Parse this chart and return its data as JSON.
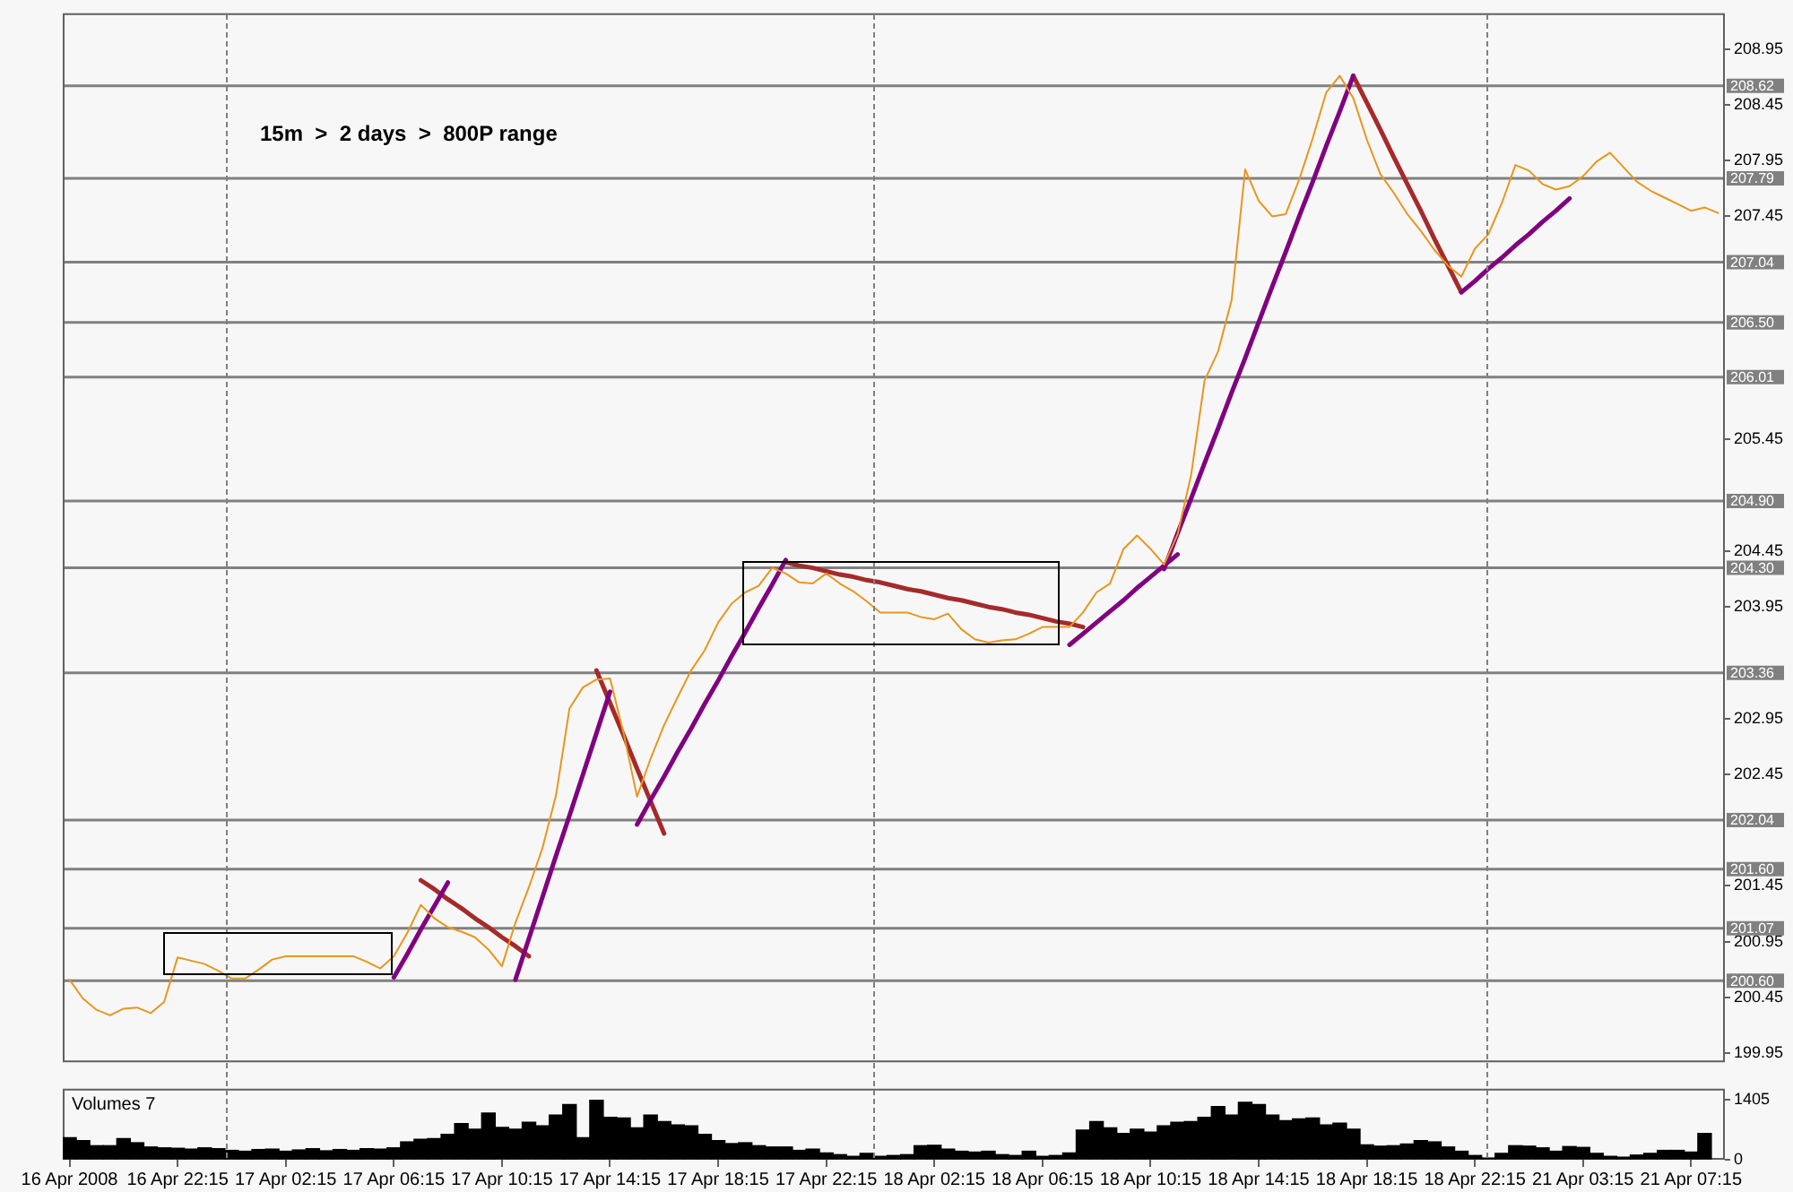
{
  "chart_data": [
    {
      "type": "line",
      "categories": [
        null,
        null,
        null,
        null,
        null,
        null,
        null,
        null,
        null,
        null,
        null,
        null,
        null,
        null,
        null,
        null,
        null,
        null,
        null,
        null,
        null,
        null,
        null,
        null,
        null,
        null,
        null,
        null,
        null,
        null,
        null,
        null,
        null,
        null,
        null,
        null,
        null,
        null,
        null,
        null,
        null,
        null,
        null,
        null,
        null,
        null,
        null,
        null,
        null,
        null,
        null,
        null,
        null,
        null,
        null,
        null,
        null,
        null,
        null,
        null,
        null,
        null,
        null,
        null,
        null,
        null,
        null,
        null,
        null,
        null,
        null,
        null,
        null,
        null,
        null,
        null,
        null,
        null,
        null,
        null,
        null,
        null,
        null,
        null,
        null,
        null,
        null,
        null,
        null,
        null,
        null,
        null,
        null,
        null,
        null,
        null,
        null,
        null,
        null,
        null,
        null,
        null,
        null,
        null,
        null,
        null,
        null,
        null,
        null,
        null,
        null,
        null,
        null,
        null,
        null,
        null,
        null,
        null,
        null,
        null,
        null,
        null,
        null
      ],
      "ylim": [
        199.87,
        209.27
      ],
      "yticks": [
        199.95,
        200.45,
        200.95,
        201.45,
        202.45,
        202.95,
        203.95,
        204.45,
        205.45,
        207.45,
        207.95,
        208.45,
        208.95
      ],
      "tick_labels": "y",
      "marker": "none",
      "annotations": [
        "15m  >  2 days  >  800P range"
      ],
      "ref_lines": [
        {
          "axis": "y",
          "value": 208.62,
          "label": "208.62",
          "color": "#808080"
        },
        {
          "axis": "y",
          "value": 207.79,
          "label": "207.79",
          "color": "#808080"
        },
        {
          "axis": "y",
          "value": 207.04,
          "label": "207.04",
          "color": "#808080"
        },
        {
          "axis": "y",
          "value": 206.5,
          "label": "206.50",
          "color": "#808080"
        },
        {
          "axis": "y",
          "value": 206.01,
          "label": "206.01",
          "color": "#808080"
        },
        {
          "axis": "y",
          "value": 204.9,
          "label": "204.90",
          "color": "#808080"
        },
        {
          "axis": "y",
          "value": 204.3,
          "label": "204.30",
          "color": "#808080"
        },
        {
          "axis": "y",
          "value": 203.36,
          "label": "203.36",
          "color": "#808080"
        },
        {
          "axis": "y",
          "value": 202.04,
          "label": "202.04",
          "color": "#808080"
        },
        {
          "axis": "y",
          "value": 201.6,
          "label": "201.60",
          "color": "#808080"
        },
        {
          "axis": "y",
          "value": 201.07,
          "label": "201.07",
          "color": "#808080"
        },
        {
          "axis": "y",
          "value": 200.6,
          "label": "200.60",
          "color": "#808080"
        }
      ],
      "series": [
        {
          "color": "#e8961e",
          "values": [
            200.61,
            200.44,
            200.34,
            200.29,
            200.35,
            200.36,
            200.31,
            200.41,
            200.81,
            200.78,
            200.75,
            200.69,
            200.62,
            200.62,
            200.7,
            200.79,
            200.82,
            200.82,
            200.82,
            200.82,
            200.82,
            200.82,
            200.77,
            200.71,
            200.82,
            201.03,
            201.28,
            201.16,
            201.08,
            201.04,
            200.99,
            200.88,
            200.73,
            201.12,
            201.44,
            201.79,
            202.26,
            203.04,
            203.23,
            203.3,
            203.31,
            202.82,
            202.25,
            202.59,
            202.89,
            203.14,
            203.38,
            203.56,
            203.81,
            203.98,
            204.08,
            204.14,
            204.3,
            204.25,
            204.17,
            204.16,
            204.25,
            204.16,
            204.09,
            204.0,
            203.9,
            203.9,
            203.9,
            203.86,
            203.84,
            203.89,
            203.75,
            203.66,
            203.63,
            203.65,
            203.66,
            203.71,
            203.77,
            203.77,
            203.77,
            203.9,
            204.08,
            204.16,
            204.47,
            204.59,
            204.47,
            204.33,
            204.6,
            205.13,
            205.98,
            206.24,
            206.7,
            207.87,
            207.59,
            207.45,
            207.47,
            207.78,
            208.15,
            208.56,
            208.71,
            208.51,
            208.14,
            207.83,
            207.66,
            207.47,
            207.32,
            207.15,
            207.01,
            206.91,
            207.16,
            207.29,
            207.57,
            207.91,
            207.86,
            207.74,
            207.69,
            207.72,
            207.81,
            207.94,
            208.02,
            207.89,
            207.76,
            207.68,
            207.62,
            207.56,
            207.5,
            207.53,
            207.48
          ]
        },
        {
          "color": "#800080",
          "values": [
            null,
            null,
            null,
            null,
            null,
            null,
            null,
            null,
            null,
            null,
            null,
            null,
            null,
            null,
            null,
            null,
            null,
            null,
            null,
            null,
            null,
            null,
            null,
            null,
            200.63,
            200.84,
            201.06,
            201.27,
            201.48,
            null,
            null,
            null,
            null,
            null,
            null,
            null,
            null,
            null,
            null,
            null,
            null,
            null,
            null,
            null,
            null,
            null,
            null,
            null,
            null,
            null,
            null,
            null,
            null,
            null,
            null,
            null,
            null,
            null,
            null,
            null,
            null,
            null,
            null,
            null,
            null,
            null,
            null,
            null,
            null,
            null,
            null,
            null,
            null,
            null,
            null,
            null,
            null,
            null,
            null,
            null,
            null,
            null,
            null,
            null,
            null,
            null,
            null,
            null,
            null,
            null,
            null,
            null,
            null,
            null,
            null,
            null,
            null,
            null,
            null,
            null,
            null,
            null,
            null,
            null,
            null,
            null,
            null,
            null,
            null,
            null,
            null,
            null,
            null,
            null,
            null,
            null,
            null,
            null,
            null,
            null,
            null,
            null,
            null
          ]
        },
        {
          "color": "#800080",
          "values": [
            null,
            null,
            null,
            null,
            null,
            null,
            null,
            null,
            null,
            null,
            null,
            null,
            null,
            null,
            null,
            null,
            null,
            null,
            null,
            null,
            null,
            null,
            null,
            null,
            null,
            null,
            null,
            null,
            null,
            null,
            null,
            null,
            null,
            200.61,
            200.98,
            201.35,
            201.72,
            202.08,
            202.45,
            202.82,
            203.19,
            null,
            null,
            null,
            null,
            null,
            null,
            null,
            null,
            null,
            null,
            null,
            null,
            null,
            null,
            null,
            null,
            null,
            null,
            null,
            null,
            null,
            null,
            null,
            null,
            null,
            null,
            null,
            null,
            null,
            null,
            null,
            null,
            null,
            null,
            null,
            null,
            null,
            null,
            null,
            null,
            null,
            null,
            null,
            null,
            null,
            null,
            null,
            null,
            null,
            null,
            null,
            null,
            null,
            null,
            null,
            null,
            null,
            null,
            null,
            null,
            null,
            null,
            null,
            null,
            null,
            null,
            null,
            null,
            null,
            null,
            null,
            null,
            null,
            null,
            null,
            null,
            null,
            null,
            null,
            null,
            null,
            null
          ]
        },
        {
          "color": "#800080",
          "values": [
            null,
            null,
            null,
            null,
            null,
            null,
            null,
            null,
            null,
            null,
            null,
            null,
            null,
            null,
            null,
            null,
            null,
            null,
            null,
            null,
            null,
            null,
            null,
            null,
            null,
            null,
            null,
            null,
            null,
            null,
            null,
            null,
            null,
            null,
            null,
            null,
            null,
            null,
            null,
            null,
            null,
            null,
            202.0,
            202.22,
            202.43,
            202.65,
            202.86,
            203.08,
            203.29,
            203.51,
            203.72,
            203.94,
            204.15,
            204.37,
            null,
            null,
            null,
            null,
            null,
            null,
            null,
            null,
            null,
            null,
            null,
            null,
            null,
            null,
            null,
            null,
            null,
            null,
            null,
            null,
            null,
            null,
            null,
            null,
            null,
            null,
            null,
            null,
            null,
            null,
            null,
            null,
            null,
            null,
            null,
            null,
            null,
            null,
            null,
            null,
            null,
            null,
            null,
            null,
            null,
            null,
            null,
            null,
            null,
            null,
            null,
            null,
            null,
            null,
            null,
            null,
            null,
            null,
            null,
            null,
            null,
            null,
            null,
            null,
            null,
            null,
            null,
            null,
            null
          ]
        },
        {
          "color": "#800080",
          "values": [
            null,
            null,
            null,
            null,
            null,
            null,
            null,
            null,
            null,
            null,
            null,
            null,
            null,
            null,
            null,
            null,
            null,
            null,
            null,
            null,
            null,
            null,
            null,
            null,
            null,
            null,
            null,
            null,
            null,
            null,
            null,
            null,
            null,
            null,
            null,
            null,
            null,
            null,
            null,
            null,
            null,
            null,
            null,
            null,
            null,
            null,
            null,
            null,
            null,
            null,
            null,
            null,
            null,
            null,
            null,
            null,
            null,
            null,
            null,
            null,
            null,
            null,
            null,
            null,
            null,
            null,
            null,
            null,
            null,
            null,
            null,
            null,
            null,
            null,
            203.61,
            203.71,
            203.81,
            203.91,
            204.01,
            204.12,
            204.22,
            204.32,
            204.42,
            null,
            null,
            null,
            null,
            null,
            null,
            null,
            null,
            null,
            null,
            null,
            null,
            null,
            null,
            null,
            null,
            null,
            null,
            null,
            null,
            null,
            null,
            null,
            null,
            null,
            null,
            null,
            null,
            null,
            null,
            null,
            null,
            null,
            null,
            null,
            null,
            null,
            null,
            null,
            null
          ]
        },
        {
          "color": "#800080",
          "values": [
            null,
            null,
            null,
            null,
            null,
            null,
            null,
            null,
            null,
            null,
            null,
            null,
            null,
            null,
            null,
            null,
            null,
            null,
            null,
            null,
            null,
            null,
            null,
            null,
            null,
            null,
            null,
            null,
            null,
            null,
            null,
            null,
            null,
            null,
            null,
            null,
            null,
            null,
            null,
            null,
            null,
            null,
            null,
            null,
            null,
            null,
            null,
            null,
            null,
            null,
            null,
            null,
            null,
            null,
            null,
            null,
            null,
            null,
            null,
            null,
            null,
            null,
            null,
            null,
            null,
            null,
            null,
            null,
            null,
            null,
            null,
            null,
            null,
            null,
            null,
            null,
            null,
            null,
            null,
            null,
            null,
            204.29,
            204.61,
            204.92,
            205.24,
            205.55,
            205.87,
            206.18,
            206.5,
            206.82,
            207.13,
            207.45,
            207.76,
            208.08,
            208.39,
            208.71,
            null,
            null,
            null,
            null,
            null,
            null,
            null,
            null,
            null,
            null,
            null,
            null,
            null,
            null,
            null,
            null,
            null,
            null,
            null,
            null,
            null,
            null,
            null,
            null,
            null,
            null,
            null
          ]
        },
        {
          "color": "#800080",
          "values": [
            null,
            null,
            null,
            null,
            null,
            null,
            null,
            null,
            null,
            null,
            null,
            null,
            null,
            null,
            null,
            null,
            null,
            null,
            null,
            null,
            null,
            null,
            null,
            null,
            null,
            null,
            null,
            null,
            null,
            null,
            null,
            null,
            null,
            null,
            null,
            null,
            null,
            null,
            null,
            null,
            null,
            null,
            null,
            null,
            null,
            null,
            null,
            null,
            null,
            null,
            null,
            null,
            null,
            null,
            null,
            null,
            null,
            null,
            null,
            null,
            null,
            null,
            null,
            null,
            null,
            null,
            null,
            null,
            null,
            null,
            null,
            null,
            null,
            null,
            null,
            null,
            null,
            null,
            null,
            null,
            null,
            null,
            null,
            null,
            null,
            null,
            null,
            null,
            null,
            null,
            null,
            null,
            null,
            null,
            null,
            null,
            null,
            null,
            null,
            null,
            null,
            null,
            null,
            206.77,
            206.87,
            206.98,
            207.08,
            207.19,
            207.29,
            207.4,
            207.5,
            207.61,
            null,
            null,
            null,
            null,
            null,
            null,
            null,
            null,
            null,
            null,
            null
          ]
        },
        {
          "color": "#a52a2a",
          "values": [
            null,
            null,
            null,
            null,
            null,
            null,
            null,
            null,
            null,
            null,
            null,
            null,
            null,
            null,
            null,
            null,
            null,
            null,
            null,
            null,
            null,
            null,
            null,
            null,
            null,
            null,
            201.5,
            201.42,
            201.33,
            201.25,
            201.16,
            201.08,
            200.99,
            200.91,
            200.82,
            null,
            null,
            null,
            null,
            null,
            null,
            null,
            null,
            null,
            null,
            null,
            null,
            null,
            null,
            null,
            null,
            null,
            null,
            null,
            null,
            null,
            null,
            null,
            null,
            null,
            null,
            null,
            null,
            null,
            null,
            null,
            null,
            null,
            null,
            null,
            null,
            null,
            null,
            null,
            null,
            null,
            null,
            null,
            null,
            null,
            null,
            null,
            null,
            null,
            null,
            null,
            null,
            null,
            null,
            null,
            null,
            null,
            null,
            null,
            null,
            null,
            null,
            null,
            null,
            null,
            null,
            null,
            null,
            null,
            null,
            null,
            null,
            null,
            null,
            null,
            null,
            null,
            null,
            null,
            null,
            null,
            null,
            null,
            null,
            null,
            null,
            null,
            null
          ]
        },
        {
          "color": "#a52a2a",
          "values": [
            null,
            null,
            null,
            null,
            null,
            null,
            null,
            null,
            null,
            null,
            null,
            null,
            null,
            null,
            null,
            null,
            null,
            null,
            null,
            null,
            null,
            null,
            null,
            null,
            null,
            null,
            null,
            null,
            null,
            null,
            null,
            null,
            null,
            null,
            null,
            null,
            null,
            null,
            null,
            203.38,
            203.09,
            202.8,
            202.5,
            202.21,
            201.92,
            null,
            null,
            null,
            null,
            null,
            null,
            null,
            null,
            null,
            null,
            null,
            null,
            null,
            null,
            null,
            null,
            null,
            null,
            null,
            null,
            null,
            null,
            null,
            null,
            null,
            null,
            null,
            null,
            null,
            null,
            null,
            null,
            null,
            null,
            null,
            null,
            null,
            null,
            null,
            null,
            null,
            null,
            null,
            null,
            null,
            null,
            null,
            null,
            null,
            null,
            null,
            null,
            null,
            null,
            null,
            null,
            null,
            null,
            null,
            null,
            null,
            null,
            null,
            null,
            null,
            null,
            null,
            null,
            null,
            null,
            null,
            null,
            null,
            null,
            null,
            null,
            null,
            null
          ]
        },
        {
          "color": "#a52a2a",
          "values": [
            null,
            null,
            null,
            null,
            null,
            null,
            null,
            null,
            null,
            null,
            null,
            null,
            null,
            null,
            null,
            null,
            null,
            null,
            null,
            null,
            null,
            null,
            null,
            null,
            null,
            null,
            null,
            null,
            null,
            null,
            null,
            null,
            null,
            null,
            null,
            null,
            null,
            null,
            null,
            null,
            null,
            null,
            null,
            null,
            null,
            null,
            null,
            null,
            null,
            null,
            null,
            null,
            null,
            204.35,
            204.32,
            204.3,
            204.27,
            204.24,
            204.22,
            204.19,
            204.17,
            204.14,
            204.11,
            204.09,
            204.06,
            204.03,
            204.01,
            203.98,
            203.95,
            203.93,
            203.9,
            203.88,
            203.85,
            203.82,
            203.8,
            203.77,
            null,
            null,
            null,
            null,
            null,
            null,
            null,
            null,
            null,
            null,
            null,
            null,
            null,
            null,
            null,
            null,
            null,
            null,
            null,
            null,
            null,
            null,
            null,
            null,
            null,
            null,
            null,
            null,
            null,
            null,
            null,
            null,
            null,
            null,
            null,
            null,
            null,
            null,
            null,
            null,
            null,
            null,
            null,
            null,
            null,
            null,
            null
          ]
        },
        {
          "color": "#a52a2a",
          "values": [
            null,
            null,
            null,
            null,
            null,
            null,
            null,
            null,
            null,
            null,
            null,
            null,
            null,
            null,
            null,
            null,
            null,
            null,
            null,
            null,
            null,
            null,
            null,
            null,
            null,
            null,
            null,
            null,
            null,
            null,
            null,
            null,
            null,
            null,
            null,
            null,
            null,
            null,
            null,
            null,
            null,
            null,
            null,
            null,
            null,
            null,
            null,
            null,
            null,
            null,
            null,
            null,
            null,
            null,
            null,
            null,
            null,
            null,
            null,
            null,
            null,
            null,
            null,
            null,
            null,
            null,
            null,
            null,
            null,
            null,
            null,
            null,
            null,
            null,
            null,
            null,
            null,
            null,
            null,
            null,
            null,
            null,
            null,
            null,
            null,
            null,
            null,
            null,
            null,
            null,
            null,
            null,
            null,
            null,
            null,
            208.71,
            208.47,
            208.23,
            207.98,
            207.74,
            207.5,
            207.25,
            207.01,
            206.77,
            null,
            null,
            null,
            null,
            null,
            null,
            null,
            null,
            null,
            null,
            null,
            null,
            null,
            null,
            null,
            null,
            null,
            null,
            null
          ]
        }
      ]
    },
    {
      "type": "bar",
      "title": "Volumes 7",
      "categories": [
        "16 Apr 2008",
        null,
        null,
        null,
        null,
        null,
        null,
        null,
        "16 Apr 22:15",
        null,
        null,
        null,
        null,
        null,
        null,
        null,
        "17 Apr 02:15",
        null,
        null,
        null,
        null,
        null,
        null,
        null,
        "17 Apr 06:15",
        null,
        null,
        null,
        null,
        null,
        null,
        null,
        "17 Apr 10:15",
        null,
        null,
        null,
        null,
        null,
        null,
        null,
        "17 Apr 14:15",
        null,
        null,
        null,
        null,
        null,
        null,
        null,
        "17 Apr 18:15",
        null,
        null,
        null,
        null,
        null,
        null,
        null,
        "17 Apr 22:15",
        null,
        null,
        null,
        null,
        null,
        null,
        null,
        "18 Apr 02:15",
        null,
        null,
        null,
        null,
        null,
        null,
        null,
        "18 Apr 06:15",
        null,
        null,
        null,
        null,
        null,
        null,
        null,
        "18 Apr 10:15",
        null,
        null,
        null,
        null,
        null,
        null,
        null,
        "18 Apr 14:15",
        null,
        null,
        null,
        null,
        null,
        null,
        null,
        "18 Apr 18:15",
        null,
        null,
        null,
        null,
        null,
        null,
        null,
        "18 Apr 22:15",
        null,
        null,
        null,
        null,
        null,
        null,
        null,
        "21 Apr 03:15",
        null,
        null,
        null,
        null,
        null,
        null,
        null,
        "21 Apr 07:15",
        null,
        null
      ],
      "ylim": [
        0,
        1670
      ],
      "yticks": [
        0,
        1405
      ],
      "color": "#000000",
      "values": [
        520,
        450,
        330,
        330,
        500,
        400,
        300,
        280,
        270,
        250,
        280,
        260,
        220,
        200,
        240,
        250,
        200,
        230,
        260,
        210,
        240,
        220,
        260,
        250,
        280,
        420,
        480,
        500,
        600,
        850,
        720,
        1100,
        760,
        720,
        880,
        800,
        1050,
        1300,
        520,
        1400,
        1000,
        980,
        750,
        1050,
        900,
        820,
        800,
        600,
        450,
        380,
        400,
        330,
        300,
        300,
        220,
        250,
        160,
        120,
        80,
        150,
        80,
        100,
        120,
        330,
        340,
        250,
        200,
        180,
        200,
        120,
        100,
        200,
        80,
        100,
        160,
        700,
        900,
        750,
        620,
        720,
        650,
        800,
        880,
        900,
        1000,
        1250,
        1050,
        1350,
        1300,
        1050,
        920,
        960,
        980,
        820,
        860,
        720,
        350,
        320,
        330,
        370,
        450,
        420,
        300,
        200,
        100,
        40,
        150,
        330,
        320,
        280,
        200,
        310,
        290,
        150,
        80,
        60,
        110,
        150,
        220,
        220,
        180,
        620,
        null
      ]
    }
  ]
}
